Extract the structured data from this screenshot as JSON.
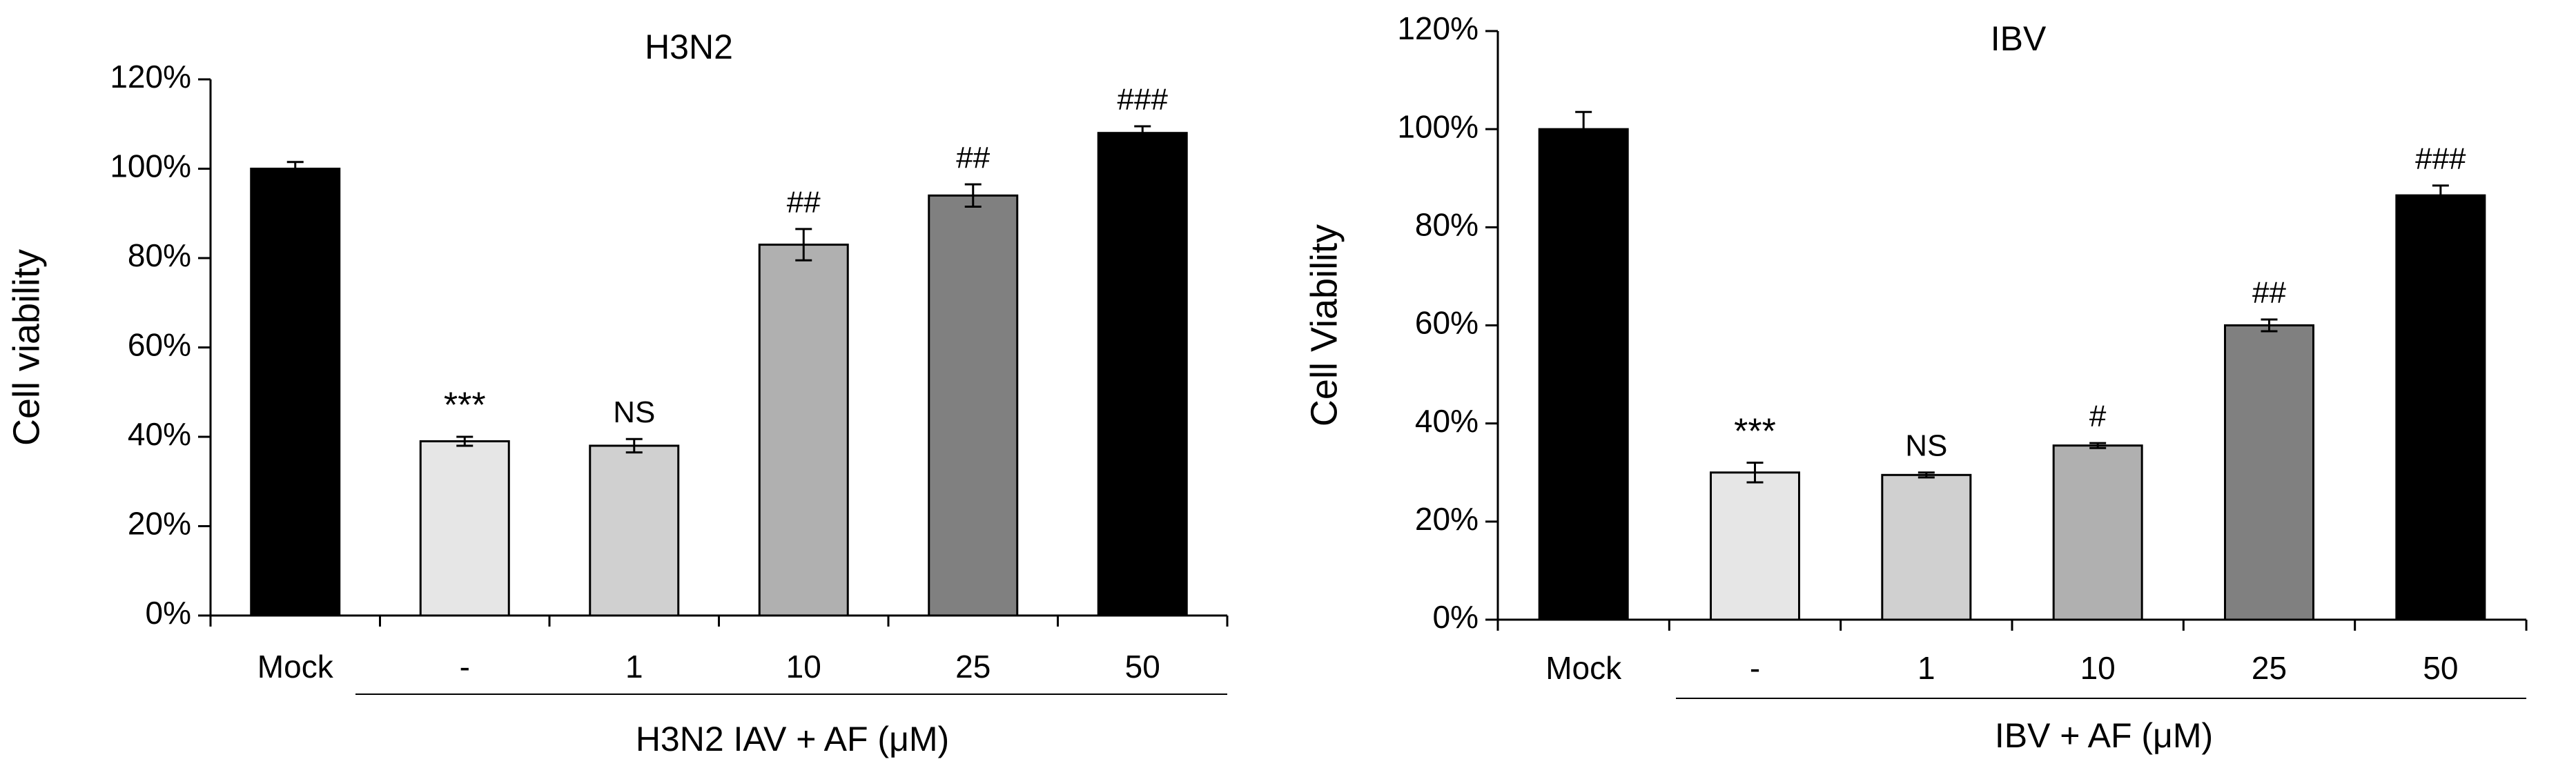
{
  "chart_data": [
    {
      "type": "bar",
      "title": "H3N2",
      "ylabel": "Cell viability",
      "xlabel": "H3N2 IAV + AF (μM)",
      "categories": [
        "Mock",
        "-",
        "1",
        "10",
        "25",
        "50"
      ],
      "values": [
        100,
        39,
        38,
        83,
        94,
        108
      ],
      "errors": [
        1.5,
        1,
        1.5,
        3.5,
        2.5,
        1.5
      ],
      "annotations": [
        "",
        "***",
        "NS",
        "##",
        "##",
        "###"
      ],
      "bar_colors": [
        "#000000",
        "#e6e6e6",
        "#d0d0d0",
        "#b0b0b0",
        "#808080",
        "#000000"
      ],
      "ylim": [
        0,
        120
      ],
      "yticks": [
        0,
        20,
        40,
        60,
        80,
        100,
        120
      ],
      "ytick_labels": [
        "0%",
        "20%",
        "40%",
        "60%",
        "80%",
        "100%",
        "120%"
      ],
      "grid": false,
      "legend": "none"
    },
    {
      "type": "bar",
      "title": "IBV",
      "ylabel": "Cell Viability",
      "xlabel": "IBV + AF (μM)",
      "categories": [
        "Mock",
        "-",
        "1",
        "10",
        "25",
        "50"
      ],
      "values": [
        100,
        30,
        29.5,
        35.5,
        60,
        86.5
      ],
      "errors": [
        3.5,
        2,
        0.5,
        0.5,
        1.2,
        2
      ],
      "annotations": [
        "",
        "***",
        "NS",
        "#",
        "##",
        "###"
      ],
      "bar_colors": [
        "#000000",
        "#e6e6e6",
        "#d0d0d0",
        "#b0b0b0",
        "#808080",
        "#000000"
      ],
      "ylim": [
        0,
        120
      ],
      "yticks": [
        0,
        20,
        40,
        60,
        80,
        100,
        120
      ],
      "ytick_labels": [
        "0%",
        "20%",
        "40%",
        "60%",
        "80%",
        "100%",
        "120%"
      ],
      "grid": false,
      "legend": "none"
    }
  ]
}
